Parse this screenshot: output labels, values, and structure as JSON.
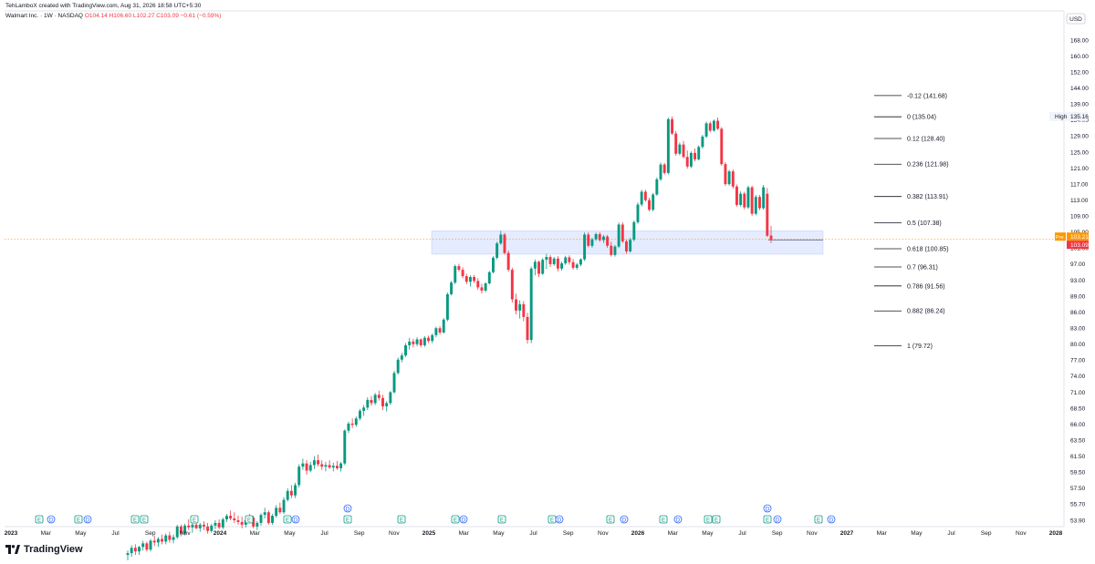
{
  "header": {
    "attribution": "TehLamboX created with TradingView.com, Aug 31, 2026 18:58 UTC+5:30",
    "symbol": "Walmart Inc. · 1W · NASDAQ",
    "ohlc": "O104.14 H106.60 L102.27 C103.09 −0.61 (−0.59%)"
  },
  "brand": {
    "name": "TradingView"
  },
  "chart_data": {
    "type": "candlestick",
    "currency": "USD",
    "timeframe": "1W",
    "y_ticks": [
      "168.00",
      "160.00",
      "152.00",
      "144.00",
      "139.00",
      "134.00",
      "129.00",
      "125.00",
      "121.00",
      "117.00",
      "113.00",
      "109.00",
      "105.00",
      "101.00",
      "97.00",
      "93.00",
      "89.00",
      "86.00",
      "83.00",
      "80.00",
      "77.00",
      "74.00",
      "71.00",
      "68.50",
      "66.00",
      "63.50",
      "61.50",
      "59.50",
      "57.50",
      "55.70",
      "53.90"
    ],
    "x_ticks": [
      "2023",
      "Mar",
      "May",
      "Jul",
      "Sep",
      "Nov",
      "2024",
      "Mar",
      "May",
      "Jul",
      "Sep",
      "Nov",
      "2025",
      "Mar",
      "May",
      "Jul",
      "Sep",
      "Nov",
      "2026",
      "Mar",
      "May",
      "Jul",
      "Sep",
      "Nov",
      "2027",
      "Mar",
      "May",
      "Jul",
      "Sep",
      "Nov",
      "2028"
    ],
    "price_labels": {
      "high_label": "High",
      "high_value": "135.16",
      "pre_label": "Pre",
      "pre_value": "103.21",
      "last_value": "103.09"
    },
    "fib_levels": [
      {
        "ratio": "-0.12",
        "price": 141.68,
        "label": "-0.12 (141.68)"
      },
      {
        "ratio": "0",
        "price": 135.04,
        "label": "0 (135.04)"
      },
      {
        "ratio": "0.12",
        "price": 128.4,
        "label": "0.12 (128.40)"
      },
      {
        "ratio": "0.236",
        "price": 121.98,
        "label": "0.236 (121.98)"
      },
      {
        "ratio": "0.382",
        "price": 113.91,
        "label": "0.382 (113.91)"
      },
      {
        "ratio": "0.5",
        "price": 107.38,
        "label": "0.5 (107.38)"
      },
      {
        "ratio": "0.618",
        "price": 100.85,
        "label": "0.618 (100.85)"
      },
      {
        "ratio": "0.7",
        "price": 96.31,
        "label": "0.7 (96.31)"
      },
      {
        "ratio": "0.786",
        "price": 91.56,
        "label": "0.786 (91.56)"
      },
      {
        "ratio": "0.882",
        "price": 86.24,
        "label": "0.882 (86.24)"
      },
      {
        "ratio": "1",
        "price": 79.72,
        "label": "1 (79.72)"
      }
    ],
    "zone": {
      "top": 105.3,
      "bottom": 99.5,
      "from_week": 120,
      "to_week": 183
    },
    "candles": [
      [
        50.0,
        50.5,
        49.4,
        50.2
      ],
      [
        50.2,
        51.1,
        49.8,
        50.8
      ],
      [
        50.8,
        51.2,
        50.0,
        50.4
      ],
      [
        50.4,
        51.0,
        50.0,
        50.9
      ],
      [
        50.9,
        51.6,
        50.5,
        51.3
      ],
      [
        51.3,
        51.5,
        50.4,
        50.6
      ],
      [
        50.6,
        51.8,
        50.4,
        51.6
      ],
      [
        51.6,
        52.2,
        51.0,
        51.4
      ],
      [
        51.4,
        52.0,
        50.9,
        51.8
      ],
      [
        51.8,
        52.3,
        51.2,
        51.5
      ],
      [
        51.5,
        52.4,
        51.2,
        52.2
      ],
      [
        52.2,
        52.6,
        51.4,
        51.7
      ],
      [
        51.7,
        52.3,
        51.3,
        52.0
      ],
      [
        52.0,
        53.4,
        51.8,
        53.2
      ],
      [
        53.2,
        53.4,
        52.1,
        52.4
      ],
      [
        52.4,
        53.5,
        52.2,
        53.3
      ],
      [
        53.3,
        54.0,
        52.8,
        53.1
      ],
      [
        53.1,
        53.6,
        52.5,
        53.4
      ],
      [
        53.4,
        53.9,
        52.9,
        53.0
      ],
      [
        53.0,
        53.6,
        52.6,
        53.4
      ],
      [
        53.4,
        53.8,
        52.8,
        53.2
      ],
      [
        53.2,
        53.6,
        52.4,
        52.7
      ],
      [
        52.7,
        53.5,
        52.5,
        53.3
      ],
      [
        53.3,
        53.9,
        52.9,
        53.6
      ],
      [
        53.6,
        54.0,
        52.9,
        53.1
      ],
      [
        53.1,
        54.2,
        52.9,
        54.0
      ],
      [
        54.0,
        54.6,
        53.7,
        54.4
      ],
      [
        54.4,
        55.0,
        53.9,
        54.1
      ],
      [
        54.1,
        54.8,
        53.6,
        53.9
      ],
      [
        53.9,
        54.4,
        53.4,
        53.7
      ],
      [
        53.7,
        54.3,
        53.0,
        53.4
      ],
      [
        53.4,
        54.1,
        53.1,
        53.9
      ],
      [
        53.9,
        54.6,
        53.6,
        54.2
      ],
      [
        54.2,
        54.4,
        53.0,
        53.2
      ],
      [
        53.2,
        53.8,
        52.8,
        53.6
      ],
      [
        53.6,
        54.7,
        53.3,
        54.5
      ],
      [
        54.5,
        55.3,
        54.1,
        54.8
      ],
      [
        54.8,
        55.0,
        53.4,
        53.6
      ],
      [
        53.6,
        54.6,
        53.4,
        54.4
      ],
      [
        54.4,
        55.6,
        54.2,
        55.3
      ],
      [
        55.3,
        55.9,
        54.6,
        54.8
      ],
      [
        54.8,
        56.5,
        54.6,
        56.2
      ],
      [
        56.2,
        57.5,
        56.0,
        57.2
      ],
      [
        57.2,
        57.9,
        56.4,
        56.7
      ],
      [
        56.7,
        58.2,
        56.4,
        57.9
      ],
      [
        57.9,
        60.5,
        57.6,
        60.2
      ],
      [
        60.2,
        61.2,
        59.8,
        60.6
      ],
      [
        60.6,
        61.0,
        59.2,
        59.7
      ],
      [
        59.7,
        60.8,
        59.5,
        60.4
      ],
      [
        60.4,
        61.5,
        59.9,
        61.0
      ],
      [
        61.0,
        61.7,
        60.2,
        60.5
      ],
      [
        60.5,
        61.0,
        59.8,
        60.2
      ],
      [
        60.2,
        60.8,
        59.6,
        60.4
      ],
      [
        60.4,
        61.0,
        59.9,
        60.1
      ],
      [
        60.1,
        60.7,
        59.6,
        60.3
      ],
      [
        60.3,
        60.9,
        59.8,
        60.0
      ],
      [
        60.0,
        60.8,
        59.6,
        60.6
      ],
      [
        60.6,
        65.2,
        60.4,
        65.0
      ],
      [
        65.0,
        66.4,
        64.6,
        66.1
      ],
      [
        66.1,
        66.9,
        65.4,
        65.9
      ],
      [
        65.9,
        67.2,
        65.6,
        66.9
      ],
      [
        66.9,
        68.4,
        66.6,
        68.1
      ],
      [
        68.1,
        69.0,
        67.3,
        68.6
      ],
      [
        68.6,
        70.2,
        68.2,
        69.8
      ],
      [
        69.8,
        70.4,
        68.9,
        69.3
      ],
      [
        69.3,
        70.9,
        69.0,
        70.6
      ],
      [
        70.6,
        71.3,
        69.7,
        70.1
      ],
      [
        70.1,
        70.6,
        68.2,
        68.8
      ],
      [
        68.8,
        69.6,
        68.0,
        69.3
      ],
      [
        69.3,
        71.2,
        69.0,
        71.0
      ],
      [
        71.0,
        75.0,
        70.8,
        74.6
      ],
      [
        74.6,
        77.5,
        74.3,
        77.1
      ],
      [
        77.1,
        78.4,
        76.6,
        77.9
      ],
      [
        77.9,
        80.2,
        77.6,
        79.8
      ],
      [
        79.8,
        81.2,
        79.0,
        80.5
      ],
      [
        80.5,
        81.0,
        79.4,
        80.0
      ],
      [
        80.0,
        81.3,
        79.6,
        80.9
      ],
      [
        80.9,
        81.1,
        79.4,
        79.8
      ],
      [
        79.8,
        81.5,
        79.5,
        81.2
      ],
      [
        81.2,
        81.6,
        80.2,
        80.6
      ],
      [
        80.6,
        82.0,
        80.2,
        81.7
      ],
      [
        81.7,
        83.3,
        81.3,
        83.0
      ],
      [
        83.0,
        83.4,
        81.8,
        82.2
      ],
      [
        82.2,
        84.9,
        82.0,
        84.6
      ],
      [
        84.6,
        89.9,
        84.3,
        89.5
      ],
      [
        89.5,
        92.8,
        89.2,
        92.4
      ],
      [
        92.4,
        96.9,
        92.0,
        96.5
      ],
      [
        96.5,
        97.1,
        95.2,
        95.6
      ],
      [
        95.6,
        96.2,
        93.5,
        94.0
      ],
      [
        94.0,
        94.6,
        92.0,
        92.6
      ],
      [
        92.6,
        94.2,
        91.4,
        93.8
      ],
      [
        93.8,
        94.3,
        92.3,
        92.8
      ],
      [
        92.8,
        93.5,
        90.6,
        91.2
      ],
      [
        91.2,
        92.1,
        89.7,
        90.4
      ],
      [
        90.4,
        92.5,
        90.0,
        92.2
      ],
      [
        92.2,
        95.3,
        91.9,
        95.0
      ],
      [
        95.0,
        99.0,
        94.7,
        98.6
      ],
      [
        98.6,
        102.6,
        98.2,
        102.2
      ],
      [
        102.2,
        105.3,
        101.8,
        104.4
      ],
      [
        104.4,
        104.8,
        99.4,
        99.8
      ],
      [
        99.8,
        100.4,
        95.1,
        95.6
      ],
      [
        95.6,
        96.1,
        87.8,
        88.4
      ],
      [
        88.4,
        89.6,
        85.6,
        86.3
      ],
      [
        86.3,
        88.2,
        84.8,
        87.5
      ],
      [
        87.5,
        88.1,
        84.3,
        85.1
      ],
      [
        85.1,
        85.9,
        80.1,
        80.8
      ],
      [
        80.8,
        96.4,
        80.2,
        95.9
      ],
      [
        95.9,
        98.2,
        94.2,
        97.6
      ],
      [
        97.6,
        97.9,
        93.8,
        94.6
      ],
      [
        94.6,
        98.5,
        94.3,
        98.1
      ],
      [
        98.1,
        99.6,
        95.8,
        98.8
      ],
      [
        98.8,
        99.3,
        96.3,
        97.0
      ],
      [
        97.0,
        98.8,
        96.6,
        98.4
      ],
      [
        98.4,
        99.0,
        95.2,
        95.9
      ],
      [
        95.9,
        97.6,
        95.4,
        97.2
      ],
      [
        97.2,
        99.1,
        96.8,
        98.7
      ],
      [
        98.7,
        99.2,
        96.9,
        97.5
      ],
      [
        97.5,
        98.3,
        95.6,
        96.1
      ],
      [
        96.1,
        97.3,
        95.6,
        96.9
      ],
      [
        96.9,
        98.5,
        96.5,
        98.2
      ],
      [
        98.2,
        104.9,
        97.8,
        104.4
      ],
      [
        104.4,
        105.0,
        101.2,
        101.6
      ],
      [
        101.6,
        103.6,
        101.1,
        103.2
      ],
      [
        103.2,
        104.9,
        102.8,
        104.5
      ],
      [
        104.5,
        105.0,
        102.6,
        103.0
      ],
      [
        103.0,
        104.3,
        102.3,
        103.9
      ],
      [
        103.9,
        104.3,
        101.1,
        101.6
      ],
      [
        101.6,
        102.6,
        98.9,
        99.3
      ],
      [
        99.3,
        101.8,
        98.9,
        101.4
      ],
      [
        101.4,
        107.4,
        101.0,
        106.9
      ],
      [
        106.9,
        107.5,
        102.3,
        102.7
      ],
      [
        102.7,
        103.2,
        99.6,
        100.2
      ],
      [
        100.2,
        103.6,
        99.9,
        103.1
      ],
      [
        103.1,
        107.9,
        102.7,
        107.5
      ],
      [
        107.5,
        112.4,
        107.1,
        111.9
      ],
      [
        111.9,
        115.6,
        111.4,
        115.1
      ],
      [
        115.1,
        115.6,
        112.6,
        113.0
      ],
      [
        113.0,
        113.6,
        110.2,
        110.6
      ],
      [
        110.6,
        114.8,
        110.2,
        114.4
      ],
      [
        114.4,
        118.7,
        114.1,
        118.2
      ],
      [
        118.2,
        122.4,
        117.8,
        121.9
      ],
      [
        121.9,
        122.3,
        119.4,
        119.8
      ],
      [
        119.8,
        134.8,
        119.4,
        134.3
      ],
      [
        134.3,
        135.16,
        129.4,
        129.8
      ],
      [
        129.8,
        130.6,
        124.1,
        124.6
      ],
      [
        124.6,
        127.4,
        124.2,
        126.9
      ],
      [
        126.9,
        127.8,
        123.4,
        123.8
      ],
      [
        123.8,
        125.4,
        120.9,
        121.4
      ],
      [
        121.4,
        125.2,
        121.0,
        124.8
      ],
      [
        124.8,
        125.9,
        122.7,
        123.2
      ],
      [
        123.2,
        126.7,
        122.9,
        126.3
      ],
      [
        126.3,
        129.4,
        125.9,
        128.9
      ],
      [
        128.9,
        133.5,
        128.5,
        133.0
      ],
      [
        133.0,
        133.6,
        130.2,
        130.7
      ],
      [
        130.7,
        134.2,
        130.4,
        133.8
      ],
      [
        133.8,
        134.8,
        130.9,
        131.3
      ],
      [
        131.3,
        131.8,
        121.6,
        122.0
      ],
      [
        122.0,
        122.5,
        116.6,
        117.0
      ],
      [
        117.0,
        120.6,
        116.6,
        120.2
      ],
      [
        120.2,
        120.7,
        115.9,
        116.4
      ],
      [
        116.4,
        116.9,
        111.4,
        111.8
      ],
      [
        111.8,
        115.2,
        111.4,
        114.6
      ],
      [
        114.6,
        115.1,
        110.7,
        111.2
      ],
      [
        111.2,
        116.6,
        110.8,
        116.2
      ],
      [
        116.2,
        116.6,
        109.1,
        109.6
      ],
      [
        109.6,
        114.3,
        109.2,
        113.8
      ],
      [
        113.8,
        114.3,
        110.5,
        111.0
      ],
      [
        111.0,
        116.8,
        110.6,
        116.2
      ],
      [
        114.6,
        116.0,
        103.8,
        104.1
      ],
      [
        104.14,
        106.6,
        102.27,
        103.09
      ]
    ]
  }
}
